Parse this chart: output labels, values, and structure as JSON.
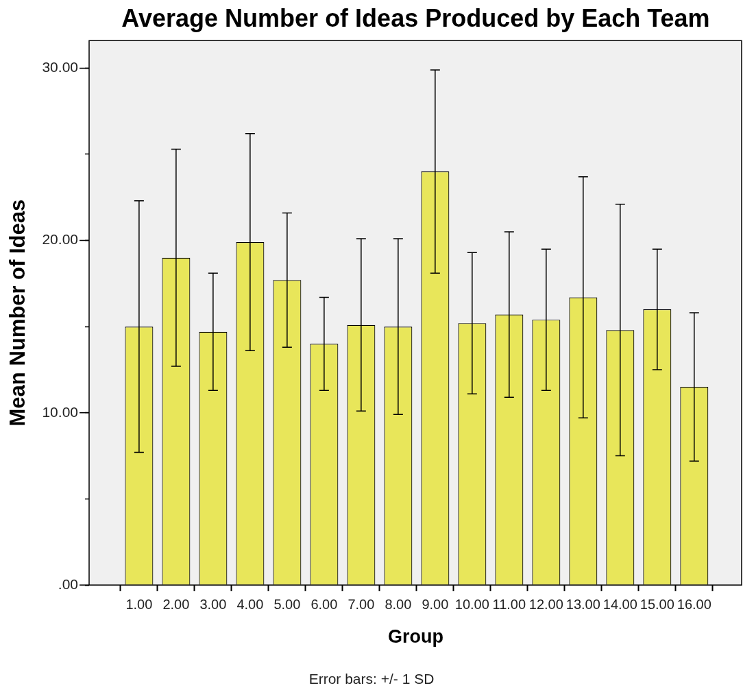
{
  "chart_data": {
    "type": "bar",
    "title": "Average Number of Ideas Produced by Each Team",
    "xlabel": "Group",
    "ylabel": "Mean Number of Ideas",
    "annotations": [
      "Error bars: +/- 1 SD"
    ],
    "categories": [
      "1.00",
      "2.00",
      "3.00",
      "4.00",
      "5.00",
      "6.00",
      "7.00",
      "8.00",
      "9.00",
      "10.00",
      "11.00",
      "12.00",
      "13.00",
      "14.00",
      "15.00",
      "16.00"
    ],
    "values": [
      15.0,
      19.0,
      14.7,
      19.9,
      17.7,
      14.0,
      15.1,
      15.0,
      24.0,
      15.2,
      15.7,
      15.4,
      16.7,
      14.8,
      16.0,
      11.5
    ],
    "errors": [
      7.3,
      6.3,
      3.4,
      6.3,
      3.9,
      2.7,
      5.0,
      5.1,
      5.9,
      4.1,
      4.8,
      4.1,
      7.0,
      7.3,
      3.5,
      4.3
    ],
    "color": "#e8e65a",
    "ylim": [
      0,
      31.6
    ],
    "yticks": [
      {
        "value": 0,
        "label": ".00"
      },
      {
        "value": 5,
        "label": null
      },
      {
        "value": 10,
        "label": "10.00"
      },
      {
        "value": 15,
        "label": null
      },
      {
        "value": 20,
        "label": "20.00"
      },
      {
        "value": 25,
        "label": null
      },
      {
        "value": 30,
        "label": "30.00"
      }
    ],
    "grid": false
  }
}
